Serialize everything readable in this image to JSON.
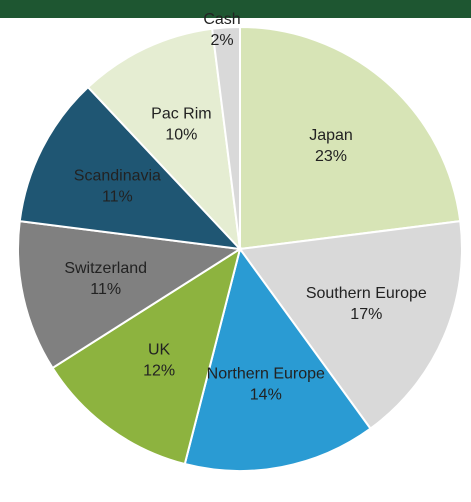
{
  "chart_data": {
    "type": "pie",
    "categories": [
      "Japan",
      "Southern Europe",
      "Northern Europe",
      "UK",
      "Switzerland",
      "Scandinavia",
      "Pac Rim",
      "Cash"
    ],
    "values": [
      23,
      17,
      14,
      12,
      11,
      11,
      10,
      2
    ],
    "value_labels": [
      "23%",
      "17%",
      "14%",
      "12%",
      "11%",
      "11%",
      "10%",
      "2%"
    ],
    "colors": [
      "#d7e4b6",
      "#d9d9d9",
      "#2a9bd3",
      "#8db33f",
      "#808080",
      "#1f5673",
      "#e5edd2",
      "#d9d9d9"
    ]
  }
}
